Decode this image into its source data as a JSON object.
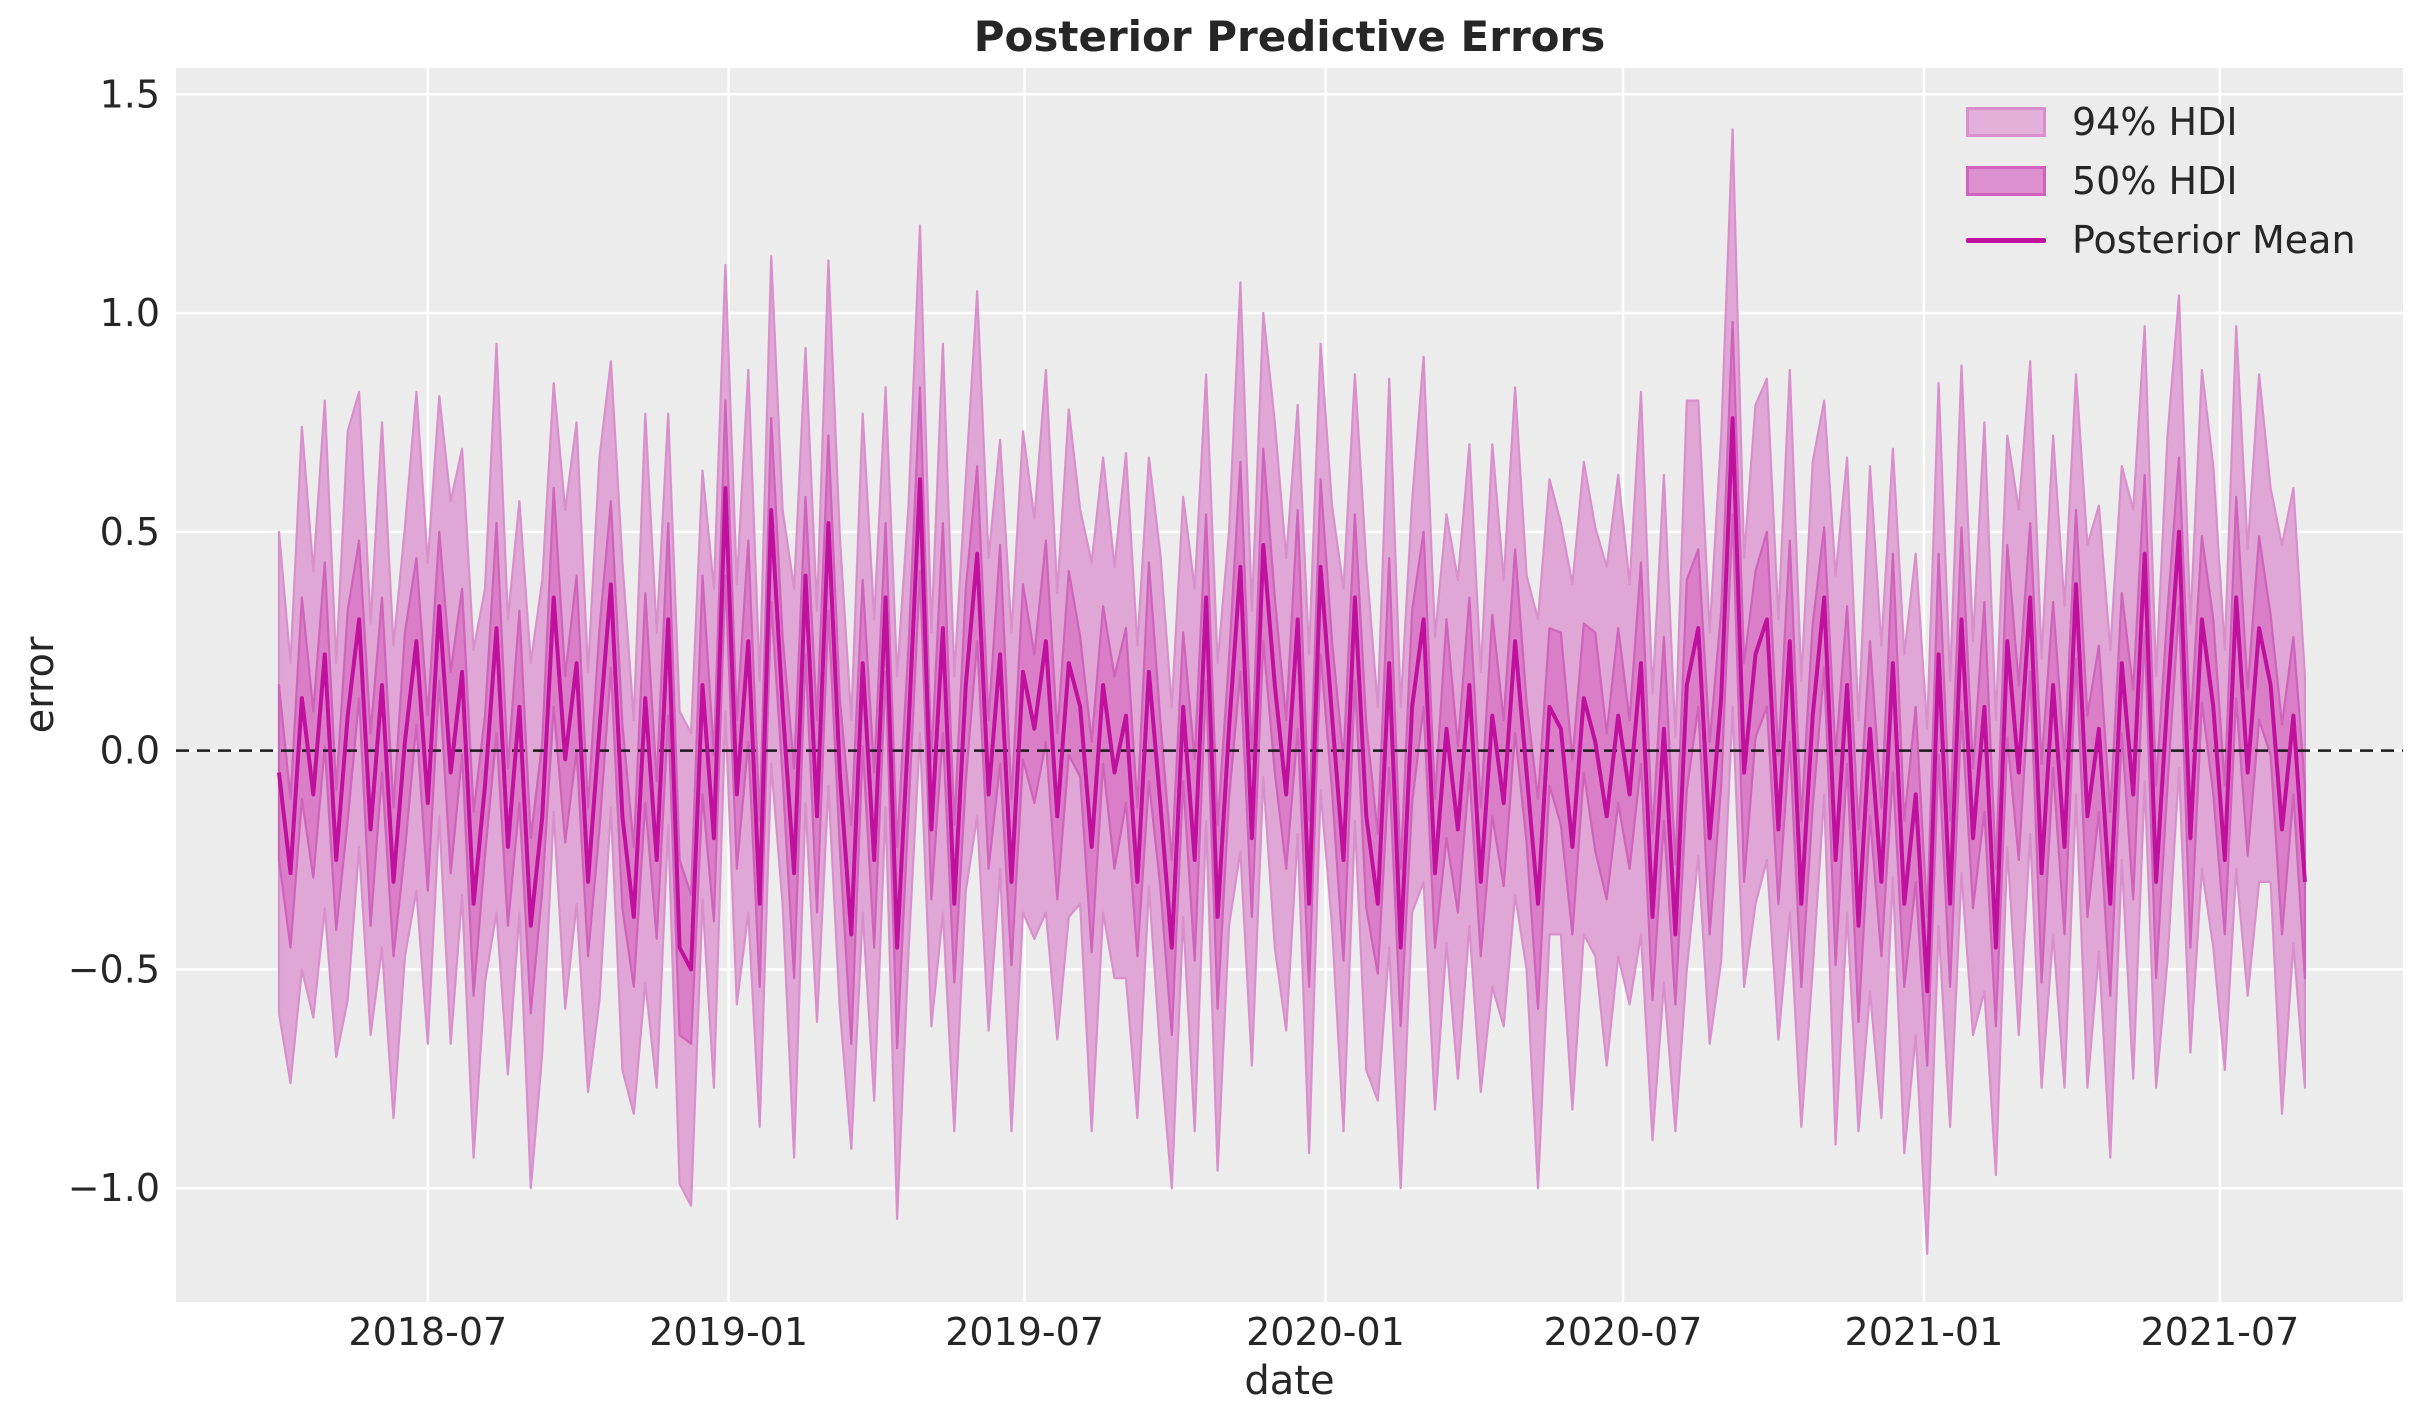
{
  "figure": {
    "background": "#ffffff"
  },
  "chart": {
    "title": "Posterior Predictive Errors",
    "xlabel": "date",
    "ylabel": "error"
  },
  "legend": {
    "items": [
      {
        "label": "94% HDI",
        "swatch": "patch",
        "fill": "#e3b0db",
        "edge": "#d88fcc"
      },
      {
        "label": "50% HDI",
        "swatch": "patch",
        "fill": "#dd90d0",
        "edge": "#cf63bb"
      },
      {
        "label": "Posterior Mean",
        "swatch": "line",
        "color": "#c0119e"
      }
    ]
  },
  "chart_data": {
    "type": "line",
    "title": "Posterior Predictive Errors",
    "xlabel": "date",
    "ylabel": "error",
    "plot_bg": "#ececec",
    "grid_color": "#ffffff",
    "text_color": "#262626",
    "legend_position": "upper right",
    "grid": true,
    "y_range": [
      -1.26,
      1.56
    ],
    "x_range": [
      "2018-01-28",
      "2021-10-21"
    ],
    "y_ticks": [
      {
        "value": 1.5,
        "label": "1.5"
      },
      {
        "value": 1.0,
        "label": "1.0"
      },
      {
        "value": 0.5,
        "label": "0.5"
      },
      {
        "value": 0.0,
        "label": "0.0"
      },
      {
        "value": -0.5,
        "label": "−0.5"
      },
      {
        "value": -1.0,
        "label": "−1.0"
      }
    ],
    "x_ticks": [
      {
        "date": "2018-07-01",
        "label": "2018-07"
      },
      {
        "date": "2019-01-01",
        "label": "2019-01"
      },
      {
        "date": "2019-07-01",
        "label": "2019-07"
      },
      {
        "date": "2020-01-01",
        "label": "2020-01"
      },
      {
        "date": "2020-07-01",
        "label": "2020-07"
      },
      {
        "date": "2021-01-01",
        "label": "2021-01"
      },
      {
        "date": "2021-07-01",
        "label": "2021-07"
      }
    ],
    "zero_line": {
      "y": 0,
      "color": "#1a1a1a",
      "style": "dashed"
    },
    "points": {
      "start_date": "2018-04-01",
      "interval_days": 7,
      "count": 178
    },
    "series": [
      {
        "name": "Posterior Mean",
        "kind": "line",
        "color": "#c0119e",
        "values": [
          -0.05,
          -0.28,
          0.12,
          -0.1,
          0.22,
          -0.25,
          0.08,
          0.3,
          -0.18,
          0.15,
          -0.3,
          0.02,
          0.25,
          -0.12,
          0.33,
          -0.05,
          0.18,
          -0.35,
          -0.08,
          0.28,
          -0.22,
          0.1,
          -0.4,
          -0.15,
          0.35,
          -0.02,
          0.2,
          -0.3,
          0.05,
          0.38,
          -0.15,
          -0.38,
          0.12,
          -0.25,
          0.3,
          -0.45,
          -0.5,
          0.15,
          -0.2,
          0.6,
          -0.1,
          0.25,
          -0.35,
          0.55,
          0.1,
          -0.28,
          0.4,
          -0.15,
          0.52,
          -0.05,
          -0.42,
          0.2,
          -0.25,
          0.35,
          -0.45,
          0.05,
          0.62,
          -0.18,
          0.28,
          -0.35,
          0.15,
          0.45,
          -0.1,
          0.22,
          -0.3,
          0.18,
          0.05,
          0.25,
          -0.15,
          0.2,
          0.1,
          -0.22,
          0.15,
          -0.05,
          0.08,
          -0.3,
          0.18,
          -0.12,
          -0.45,
          0.1,
          -0.25,
          0.35,
          -0.38,
          0.05,
          0.42,
          -0.2,
          0.47,
          0.15,
          -0.1,
          0.3,
          -0.35,
          0.42,
          0.08,
          -0.25,
          0.35,
          -0.15,
          -0.35,
          0.2,
          -0.45,
          0.1,
          0.3,
          -0.28,
          0.05,
          -0.18,
          0.15,
          -0.3,
          0.08,
          -0.12,
          0.25,
          -0.05,
          -0.35,
          0.1,
          0.05,
          -0.22,
          0.12,
          0.02,
          -0.15,
          0.08,
          -0.1,
          0.2,
          -0.38,
          0.05,
          -0.42,
          0.15,
          0.28,
          -0.2,
          0.12,
          0.76,
          -0.05,
          0.22,
          0.3,
          -0.18,
          0.25,
          -0.35,
          0.08,
          0.35,
          -0.25,
          0.15,
          -0.4,
          0.05,
          -0.3,
          0.2,
          -0.35,
          -0.1,
          -0.55,
          0.22,
          -0.35,
          0.3,
          -0.2,
          0.1,
          -0.45,
          0.25,
          -0.05,
          0.35,
          -0.28,
          0.15,
          -0.22,
          0.38,
          -0.15,
          0.05,
          -0.35,
          0.2,
          -0.1,
          0.45,
          -0.3,
          0.12,
          0.5,
          -0.2,
          0.3,
          0.1,
          -0.25,
          0.35,
          -0.05,
          0.28,
          0.15,
          -0.18,
          0.08,
          -0.3
        ]
      },
      {
        "name": "50% HDI",
        "kind": "band",
        "fill": "#d97ec7",
        "edge": "#cf63bb",
        "halfwidths": [
          0.2,
          0.17,
          0.23,
          0.19,
          0.21,
          0.16,
          0.24,
          0.18,
          0.22,
          0.2,
          0.17,
          0.25,
          0.19,
          0.2,
          0.17,
          0.23,
          0.19,
          0.21,
          0.16,
          0.24,
          0.18,
          0.22,
          0.2,
          0.17,
          0.25,
          0.19,
          0.2,
          0.17,
          0.23,
          0.19,
          0.21,
          0.16,
          0.24,
          0.18,
          0.22,
          0.2,
          0.17,
          0.25,
          0.19,
          0.2,
          0.17,
          0.23,
          0.19,
          0.21,
          0.16,
          0.24,
          0.18,
          0.22,
          0.2,
          0.17,
          0.25,
          0.19,
          0.2,
          0.17,
          0.23,
          0.19,
          0.21,
          0.16,
          0.24,
          0.18,
          0.22,
          0.2,
          0.17,
          0.25,
          0.19,
          0.2,
          0.17,
          0.23,
          0.19,
          0.21,
          0.16,
          0.24,
          0.18,
          0.22,
          0.2,
          0.17,
          0.25,
          0.19,
          0.2,
          0.17,
          0.23,
          0.19,
          0.21,
          0.16,
          0.24,
          0.18,
          0.22,
          0.2,
          0.17,
          0.25,
          0.19,
          0.2,
          0.17,
          0.23,
          0.19,
          0.21,
          0.16,
          0.24,
          0.18,
          0.22,
          0.2,
          0.17,
          0.25,
          0.19,
          0.2,
          0.17,
          0.23,
          0.19,
          0.21,
          0.16,
          0.24,
          0.18,
          0.22,
          0.2,
          0.17,
          0.25,
          0.19,
          0.2,
          0.17,
          0.23,
          0.19,
          0.21,
          0.16,
          0.24,
          0.18,
          0.22,
          0.2,
          0.22,
          0.25,
          0.19,
          0.2,
          0.17,
          0.23,
          0.19,
          0.21,
          0.16,
          0.24,
          0.18,
          0.22,
          0.2,
          0.17,
          0.25,
          0.19,
          0.2,
          0.17,
          0.23,
          0.19,
          0.21,
          0.16,
          0.24,
          0.18,
          0.22,
          0.2,
          0.17,
          0.25,
          0.19,
          0.2,
          0.17,
          0.23,
          0.19,
          0.21,
          0.16,
          0.24,
          0.18,
          0.22,
          0.2,
          0.17,
          0.25,
          0.19,
          0.2,
          0.17,
          0.23,
          0.19,
          0.21,
          0.16,
          0.24,
          0.18,
          0.22
        ]
      },
      {
        "name": "94% HDI",
        "kind": "band",
        "fill": "#e0a7d6",
        "edge": "#d88fcc",
        "halfwidths": [
          0.55,
          0.48,
          0.62,
          0.51,
          0.58,
          0.45,
          0.65,
          0.52,
          0.47,
          0.6,
          0.54,
          0.49,
          0.57,
          0.55,
          0.48,
          0.62,
          0.51,
          0.58,
          0.45,
          0.65,
          0.52,
          0.47,
          0.6,
          0.54,
          0.49,
          0.57,
          0.55,
          0.48,
          0.62,
          0.51,
          0.58,
          0.45,
          0.65,
          0.52,
          0.47,
          0.54,
          0.54,
          0.49,
          0.57,
          0.51,
          0.48,
          0.62,
          0.51,
          0.58,
          0.45,
          0.65,
          0.52,
          0.47,
          0.6,
          0.54,
          0.49,
          0.57,
          0.55,
          0.48,
          0.62,
          0.51,
          0.58,
          0.45,
          0.65,
          0.52,
          0.47,
          0.6,
          0.54,
          0.49,
          0.57,
          0.55,
          0.48,
          0.62,
          0.51,
          0.58,
          0.45,
          0.65,
          0.52,
          0.47,
          0.6,
          0.54,
          0.49,
          0.57,
          0.55,
          0.48,
          0.62,
          0.51,
          0.58,
          0.45,
          0.65,
          0.52,
          0.53,
          0.6,
          0.54,
          0.49,
          0.57,
          0.51,
          0.48,
          0.62,
          0.51,
          0.58,
          0.45,
          0.65,
          0.55,
          0.47,
          0.6,
          0.54,
          0.49,
          0.57,
          0.55,
          0.48,
          0.62,
          0.51,
          0.58,
          0.45,
          0.65,
          0.52,
          0.47,
          0.6,
          0.54,
          0.49,
          0.57,
          0.55,
          0.48,
          0.62,
          0.51,
          0.58,
          0.45,
          0.65,
          0.52,
          0.47,
          0.6,
          0.66,
          0.49,
          0.57,
          0.55,
          0.48,
          0.62,
          0.51,
          0.58,
          0.45,
          0.65,
          0.52,
          0.47,
          0.6,
          0.54,
          0.49,
          0.57,
          0.55,
          0.6,
          0.62,
          0.51,
          0.58,
          0.45,
          0.65,
          0.52,
          0.47,
          0.6,
          0.54,
          0.49,
          0.57,
          0.55,
          0.48,
          0.62,
          0.51,
          0.58,
          0.45,
          0.65,
          0.52,
          0.47,
          0.6,
          0.54,
          0.49,
          0.57,
          0.55,
          0.48,
          0.62,
          0.51,
          0.58,
          0.45,
          0.65,
          0.52,
          0.47
        ]
      }
    ]
  }
}
